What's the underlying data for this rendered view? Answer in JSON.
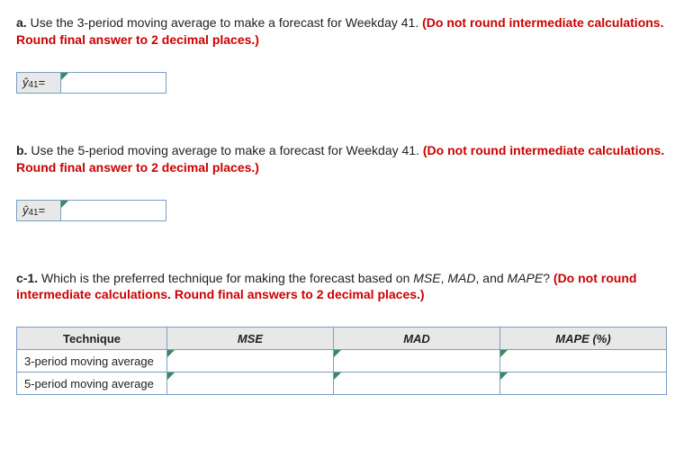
{
  "partA": {
    "label": "a.",
    "text_before": " Use the 3-period moving average to make a forecast for Weekday 41. ",
    "red_text": "(Do not round intermediate calculations. Round final answer to 2 decimal places.)",
    "yhat_sub": "41",
    "eq": " =",
    "input_value": ""
  },
  "partB": {
    "label": "b.",
    "text_before": " Use the 5-period moving average to make a forecast for Weekday 41. ",
    "red_text": "(Do not round intermediate calculations. Round final answer to 2 decimal places.)",
    "yhat_sub": "41",
    "eq": " =",
    "input_value": ""
  },
  "partC1": {
    "label": "c-1.",
    "text_before": " Which is the preferred technique for making the forecast based on ",
    "ital1": "MSE",
    "ital2": "MAD",
    "ital3": "MAPE",
    "text_mid1": ", ",
    "text_mid2": ", and ",
    "text_after": "? ",
    "red_text": "(Do not round intermediate calculations. Round final answers to 2 decimal places.)",
    "table": {
      "headers": {
        "technique": "Technique",
        "mse": "MSE",
        "mad": "MAD",
        "mape": "MAPE (%)"
      },
      "rows": [
        {
          "technique": "3-period moving average",
          "mse": "",
          "mad": "",
          "mape": ""
        },
        {
          "technique": "5-period moving average",
          "mse": "",
          "mad": "",
          "mape": ""
        }
      ]
    }
  }
}
